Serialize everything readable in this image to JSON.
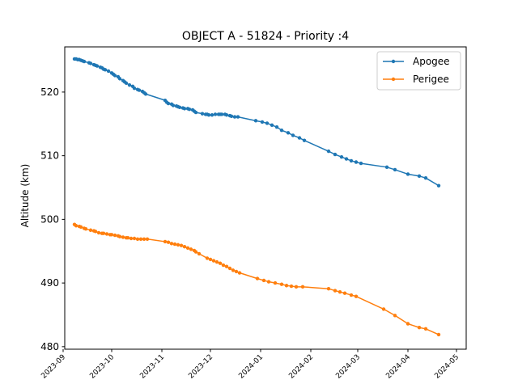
{
  "chart_data": {
    "type": "line",
    "title": "OBJECT A - 51824 - Priority :4",
    "xlabel": "",
    "ylabel": "Altitude (km)",
    "grid": false,
    "legend_placement": "top-right",
    "xlim": [
      "2023-09-02",
      "2024-05-07"
    ],
    "ylim": [
      479.6,
      527.1
    ],
    "x_ticks": [
      "2023-09",
      "2023-10",
      "2023-11",
      "2023-12",
      "2024-01",
      "2024-02",
      "2024-03",
      "2024-04",
      "2024-05"
    ],
    "y_ticks": [
      480,
      490,
      500,
      510,
      520
    ],
    "series": [
      {
        "name": "Apogee",
        "color": "#1f77b4",
        "marker": "dot",
        "points": [
          [
            "2023-09-08",
            525.2
          ],
          [
            "2023-09-09",
            525.2
          ],
          [
            "2023-09-10",
            525.1
          ],
          [
            "2023-09-11",
            525.1
          ],
          [
            "2023-09-12",
            525.0
          ],
          [
            "2023-09-13",
            524.9
          ],
          [
            "2023-09-14",
            524.8
          ],
          [
            "2023-09-17",
            524.6
          ],
          [
            "2023-09-18",
            524.5
          ],
          [
            "2023-09-20",
            524.3
          ],
          [
            "2023-09-21",
            524.2
          ],
          [
            "2023-09-22",
            524.1
          ],
          [
            "2023-09-24",
            523.9
          ],
          [
            "2023-09-25",
            523.8
          ],
          [
            "2023-09-26",
            523.6
          ],
          [
            "2023-09-27",
            523.5
          ],
          [
            "2023-09-29",
            523.3
          ],
          [
            "2023-10-01",
            523.0
          ],
          [
            "2023-10-02",
            522.8
          ],
          [
            "2023-10-03",
            522.6
          ],
          [
            "2023-10-05",
            522.4
          ],
          [
            "2023-10-06",
            522.1
          ],
          [
            "2023-10-08",
            521.8
          ],
          [
            "2023-10-09",
            521.6
          ],
          [
            "2023-10-10",
            521.4
          ],
          [
            "2023-10-12",
            521.1
          ],
          [
            "2023-10-14",
            520.9
          ],
          [
            "2023-10-15",
            520.6
          ],
          [
            "2023-10-17",
            520.4
          ],
          [
            "2023-10-18",
            520.3
          ],
          [
            "2023-10-20",
            520.1
          ],
          [
            "2023-10-21",
            519.9
          ],
          [
            "2023-10-22",
            519.7
          ],
          [
            "2023-11-03",
            518.7
          ],
          [
            "2023-11-04",
            518.4
          ],
          [
            "2023-11-05",
            518.2
          ],
          [
            "2023-11-07",
            518.1
          ],
          [
            "2023-11-08",
            517.9
          ],
          [
            "2023-11-10",
            517.8
          ],
          [
            "2023-11-11",
            517.7
          ],
          [
            "2023-11-12",
            517.6
          ],
          [
            "2023-11-14",
            517.5
          ],
          [
            "2023-11-15",
            517.4
          ],
          [
            "2023-11-17",
            517.4
          ],
          [
            "2023-11-18",
            517.3
          ],
          [
            "2023-11-20",
            517.2
          ],
          [
            "2023-11-21",
            517.0
          ],
          [
            "2023-11-22",
            516.8
          ],
          [
            "2023-11-26",
            516.6
          ],
          [
            "2023-11-28",
            516.5
          ],
          [
            "2023-11-29",
            516.5
          ],
          [
            "2023-11-30",
            516.4
          ],
          [
            "2023-12-02",
            516.4
          ],
          [
            "2023-12-04",
            516.5
          ],
          [
            "2023-12-06",
            516.5
          ],
          [
            "2023-12-07",
            516.5
          ],
          [
            "2023-12-08",
            516.5
          ],
          [
            "2023-12-10",
            516.5
          ],
          [
            "2023-12-11",
            516.4
          ],
          [
            "2023-12-13",
            516.3
          ],
          [
            "2023-12-14",
            516.2
          ],
          [
            "2023-12-16",
            516.1
          ],
          [
            "2023-12-18",
            516.1
          ],
          [
            "2023-12-29",
            515.5
          ],
          [
            "2024-01-02",
            515.3
          ],
          [
            "2024-01-05",
            515.1
          ],
          [
            "2024-01-08",
            514.8
          ],
          [
            "2024-01-11",
            514.5
          ],
          [
            "2024-01-14",
            514.0
          ],
          [
            "2024-01-18",
            513.6
          ],
          [
            "2024-01-21",
            513.2
          ],
          [
            "2024-01-25",
            512.8
          ],
          [
            "2024-01-28",
            512.4
          ],
          [
            "2024-02-12",
            510.7
          ],
          [
            "2024-02-16",
            510.2
          ],
          [
            "2024-02-20",
            509.8
          ],
          [
            "2024-02-23",
            509.5
          ],
          [
            "2024-02-26",
            509.2
          ],
          [
            "2024-02-29",
            509.0
          ],
          [
            "2024-03-03",
            508.8
          ],
          [
            "2024-03-19",
            508.2
          ],
          [
            "2024-03-24",
            507.8
          ],
          [
            "2024-04-01",
            507.1
          ],
          [
            "2024-04-08",
            506.8
          ],
          [
            "2024-04-12",
            506.5
          ],
          [
            "2024-04-20",
            505.3
          ]
        ]
      },
      {
        "name": "Perigee",
        "color": "#ff7f0e",
        "marker": "dot",
        "points": [
          [
            "2023-09-08",
            499.2
          ],
          [
            "2023-09-09",
            499.0
          ],
          [
            "2023-09-11",
            498.9
          ],
          [
            "2023-09-12",
            498.8
          ],
          [
            "2023-09-14",
            498.6
          ],
          [
            "2023-09-15",
            498.5
          ],
          [
            "2023-09-18",
            498.3
          ],
          [
            "2023-09-20",
            498.2
          ],
          [
            "2023-09-21",
            498.1
          ],
          [
            "2023-09-23",
            497.9
          ],
          [
            "2023-09-25",
            497.8
          ],
          [
            "2023-09-26",
            497.8
          ],
          [
            "2023-09-28",
            497.7
          ],
          [
            "2023-09-30",
            497.6
          ],
          [
            "2023-10-01",
            497.6
          ],
          [
            "2023-10-03",
            497.5
          ],
          [
            "2023-10-05",
            497.4
          ],
          [
            "2023-10-06",
            497.3
          ],
          [
            "2023-10-08",
            497.2
          ],
          [
            "2023-10-10",
            497.1
          ],
          [
            "2023-10-11",
            497.1
          ],
          [
            "2023-10-13",
            497.0
          ],
          [
            "2023-10-15",
            497.0
          ],
          [
            "2023-10-17",
            496.9
          ],
          [
            "2023-10-19",
            496.9
          ],
          [
            "2023-10-21",
            496.9
          ],
          [
            "2023-10-23",
            496.9
          ],
          [
            "2023-11-03",
            496.5
          ],
          [
            "2023-11-05",
            496.4
          ],
          [
            "2023-11-07",
            496.2
          ],
          [
            "2023-11-09",
            496.1
          ],
          [
            "2023-11-11",
            496.0
          ],
          [
            "2023-11-13",
            495.9
          ],
          [
            "2023-11-15",
            495.7
          ],
          [
            "2023-11-17",
            495.5
          ],
          [
            "2023-11-19",
            495.3
          ],
          [
            "2023-11-21",
            495.1
          ],
          [
            "2023-11-22",
            494.9
          ],
          [
            "2023-11-24",
            494.6
          ],
          [
            "2023-11-29",
            493.9
          ],
          [
            "2023-12-01",
            493.7
          ],
          [
            "2023-12-03",
            493.5
          ],
          [
            "2023-12-05",
            493.3
          ],
          [
            "2023-12-07",
            493.1
          ],
          [
            "2023-12-09",
            492.8
          ],
          [
            "2023-12-11",
            492.6
          ],
          [
            "2023-12-13",
            492.3
          ],
          [
            "2023-12-15",
            492.0
          ],
          [
            "2023-12-17",
            491.8
          ],
          [
            "2023-12-19",
            491.6
          ],
          [
            "2023-12-30",
            490.7
          ],
          [
            "2024-01-03",
            490.4
          ],
          [
            "2024-01-06",
            490.2
          ],
          [
            "2024-01-10",
            490.0
          ],
          [
            "2024-01-14",
            489.8
          ],
          [
            "2024-01-17",
            489.6
          ],
          [
            "2024-01-20",
            489.5
          ],
          [
            "2024-01-23",
            489.4
          ],
          [
            "2024-01-27",
            489.4
          ],
          [
            "2024-02-12",
            489.1
          ],
          [
            "2024-02-16",
            488.8
          ],
          [
            "2024-02-19",
            488.6
          ],
          [
            "2024-02-22",
            488.4
          ],
          [
            "2024-02-26",
            488.1
          ],
          [
            "2024-02-29",
            487.9
          ],
          [
            "2024-03-17",
            485.9
          ],
          [
            "2024-03-24",
            484.9
          ],
          [
            "2024-04-01",
            483.6
          ],
          [
            "2024-04-08",
            483.0
          ],
          [
            "2024-04-12",
            482.8
          ],
          [
            "2024-04-20",
            481.9
          ]
        ]
      }
    ]
  }
}
